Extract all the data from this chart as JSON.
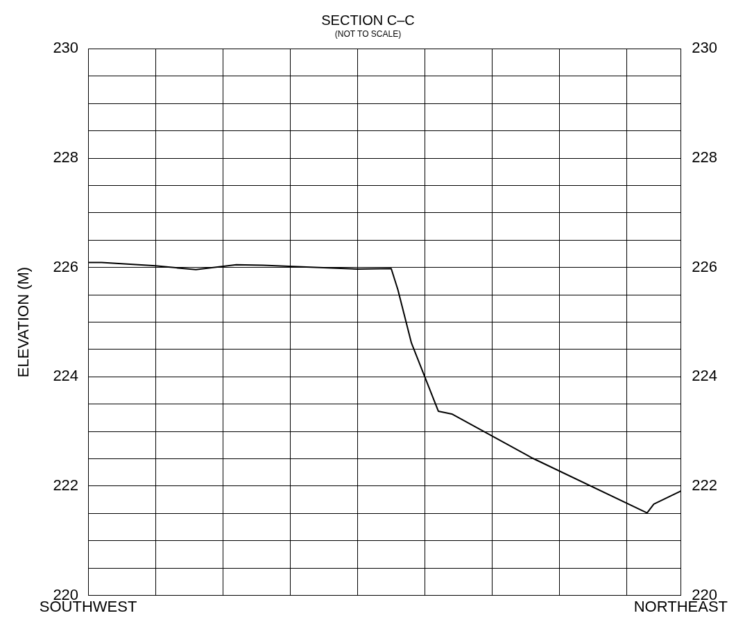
{
  "chart_data": {
    "type": "line",
    "title": "SECTION C–C",
    "subtitle": "(NOT TO SCALE)",
    "ylabel": "ELEVATION (M)",
    "categories": [
      "SOUTHWEST",
      null,
      null,
      null,
      null,
      null,
      null,
      null,
      null,
      null,
      null,
      null,
      null,
      null,
      null,
      null,
      null,
      null,
      null,
      null,
      null,
      null,
      null,
      null,
      null,
      null,
      null,
      null,
      null,
      null,
      null,
      null,
      null,
      null,
      null,
      null,
      null,
      null,
      null,
      null,
      null,
      null,
      null,
      null,
      null,
      null,
      null,
      null,
      null,
      null,
      null,
      null,
      null,
      null,
      null,
      null,
      null,
      null,
      null,
      null,
      null,
      null,
      null,
      null,
      null,
      null,
      null,
      null,
      null,
      null,
      null,
      null,
      null,
      null,
      null,
      null,
      null,
      null,
      null,
      null,
      null,
      null,
      null,
      null,
      null,
      null,
      null,
      null,
      "NORTHEAST"
    ],
    "series": [
      {
        "color": "#000000",
        "values": [
          226.09,
          null,
          226.09,
          null,
          null,
          null,
          null,
          null,
          null,
          null,
          226.03,
          null,
          null,
          null,
          null,
          null,
          225.96,
          null,
          null,
          null,
          null,
          null,
          226.05,
          null,
          null,
          null,
          226.04,
          null,
          null,
          null,
          null,
          null,
          null,
          null,
          null,
          null,
          null,
          null,
          null,
          null,
          225.97,
          null,
          null,
          null,
          null,
          225.98,
          225.59,
          null,
          224.62,
          null,
          null,
          null,
          223.37,
          null,
          223.32,
          null,
          null,
          null,
          null,
          null,
          null,
          null,
          null,
          null,
          null,
          null,
          222.51,
          null,
          null,
          null,
          null,
          null,
          null,
          null,
          null,
          null,
          null,
          null,
          null,
          null,
          null,
          null,
          null,
          221.51,
          221.67,
          null,
          null,
          null,
          221.91
        ]
      }
    ],
    "ylim": [
      220,
      230
    ],
    "yticks": [
      220,
      {
        "value": 220.5,
        "label": null
      },
      {
        "value": 221,
        "label": null
      },
      {
        "value": 221.5,
        "label": null
      },
      222,
      {
        "value": 222.5,
        "label": null
      },
      {
        "value": 223,
        "label": null
      },
      {
        "value": 223.5,
        "label": null
      },
      224,
      {
        "value": 224.5,
        "label": null
      },
      {
        "value": 225,
        "label": null
      },
      {
        "value": 225.5,
        "label": null
      },
      226,
      {
        "value": 226.5,
        "label": null
      },
      {
        "value": 227,
        "label": null
      },
      {
        "value": 227.5,
        "label": null
      },
      228,
      {
        "value": 228.5,
        "label": null
      },
      {
        "value": 229,
        "label": null
      },
      {
        "value": 229.5,
        "label": null
      },
      230
    ],
    "y2lim": [
      220,
      230
    ],
    "y2ticks": [
      220,
      222,
      224,
      226,
      228,
      230
    ],
    "grid": true,
    "legend": false,
    "marker": "none",
    "line_style": "solid"
  }
}
